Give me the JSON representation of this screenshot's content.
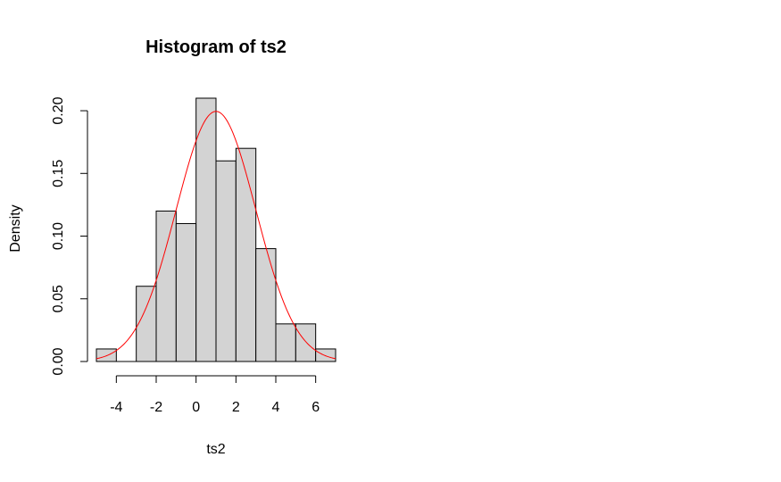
{
  "chart_data": {
    "type": "bar",
    "subtype": "histogram",
    "title": "Histogram of ts2",
    "xlabel": "ts2",
    "ylabel": "Density",
    "bin_edges": [
      -5,
      -4,
      -3,
      -2,
      -1,
      0,
      1,
      2,
      3,
      4,
      5,
      6,
      7
    ],
    "values": [
      0.01,
      0.0,
      0.06,
      0.12,
      0.11,
      0.21,
      0.16,
      0.17,
      0.09,
      0.03,
      0.03,
      0.01
    ],
    "xticks": [
      -4,
      -2,
      0,
      2,
      4,
      6
    ],
    "xtick_labels": [
      "-4",
      "-2",
      "0",
      "2",
      "4",
      "6"
    ],
    "yticks": [
      0.0,
      0.05,
      0.1,
      0.15,
      0.2
    ],
    "ytick_labels": [
      "0.00",
      "0.05",
      "0.10",
      "0.15",
      "0.20"
    ],
    "xlim": [
      -5,
      7
    ],
    "ylim": [
      0,
      0.21
    ],
    "bar_fill": "#d3d3d3",
    "bar_stroke": "#000000",
    "density_curve": {
      "color": "#ff0000",
      "distribution": "normal",
      "mean": 1.0,
      "sd": 2.0
    },
    "grid": false,
    "legend": "none"
  }
}
